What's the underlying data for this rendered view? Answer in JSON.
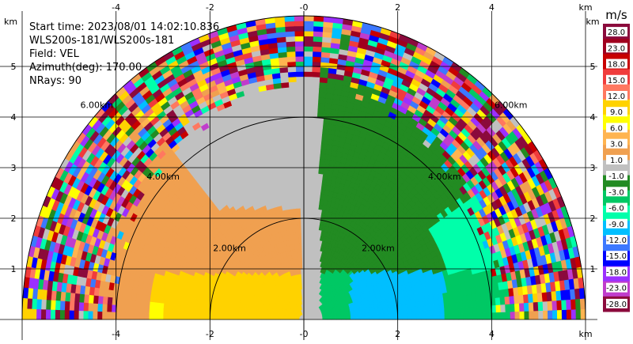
{
  "chart_data": {
    "type": "heatmap",
    "subtype": "ppi-radar-sector",
    "info_lines": [
      "Start time: 2023/08/01 14:02:10.836",
      "WLS200s-181/WLS200s-181",
      "Field: VEL",
      "Azimuth(deg): 170.00",
      "NRays: 90"
    ],
    "x_unit": "km",
    "y_unit": "km",
    "xlim": [
      -6.0,
      6.0
    ],
    "ylim": [
      0.0,
      6.0
    ],
    "x_ticks": [
      -4,
      -2,
      0,
      2,
      4
    ],
    "y_ticks": [
      1,
      2,
      3,
      4,
      5
    ],
    "x_tick_labels": [
      "-4",
      "-2",
      "-0",
      "2",
      "4"
    ],
    "y_tick_labels": [
      "1",
      "2",
      "3",
      "4",
      "5"
    ],
    "range_rings_km": [
      2,
      4,
      6
    ],
    "range_ring_labels": [
      "2.00km",
      "4.00km",
      "6.00km"
    ],
    "max_range_km": 6.0,
    "colorbar": {
      "unit": "m/s",
      "labels": [
        "28.0",
        "23.0",
        "18.0",
        "15.0",
        "12.0",
        "9.0",
        "6.0",
        "3.0",
        "1.0",
        "-1.0",
        "-3.0",
        "-6.0",
        "-9.0",
        "-12.0",
        "-15.0",
        "-18.0",
        "-23.0",
        "-28.0"
      ],
      "colors": [
        "#8b0a3c",
        "#a0001e",
        "#c80000",
        "#f03c3c",
        "#ff7860",
        "#ffd200",
        "#ffff00",
        "#ffb450",
        "#f0a050",
        "#c0c0c0",
        "#228b22",
        "#00c864",
        "#00ffaa",
        "#00bfff",
        "#3c78ff",
        "#0000ff",
        "#9b30ff",
        "#c03ccc",
        "#8b0a3c"
      ]
    },
    "velocity_field": {
      "near_left_m_s": [
        6,
        9
      ],
      "mid_left_m_s": [
        1,
        3
      ],
      "center_m_s": [
        -1,
        1
      ],
      "right_m_s": [
        -3,
        -1
      ],
      "near_right_m_s": [
        -12,
        -6
      ],
      "far_noise": true
    }
  }
}
